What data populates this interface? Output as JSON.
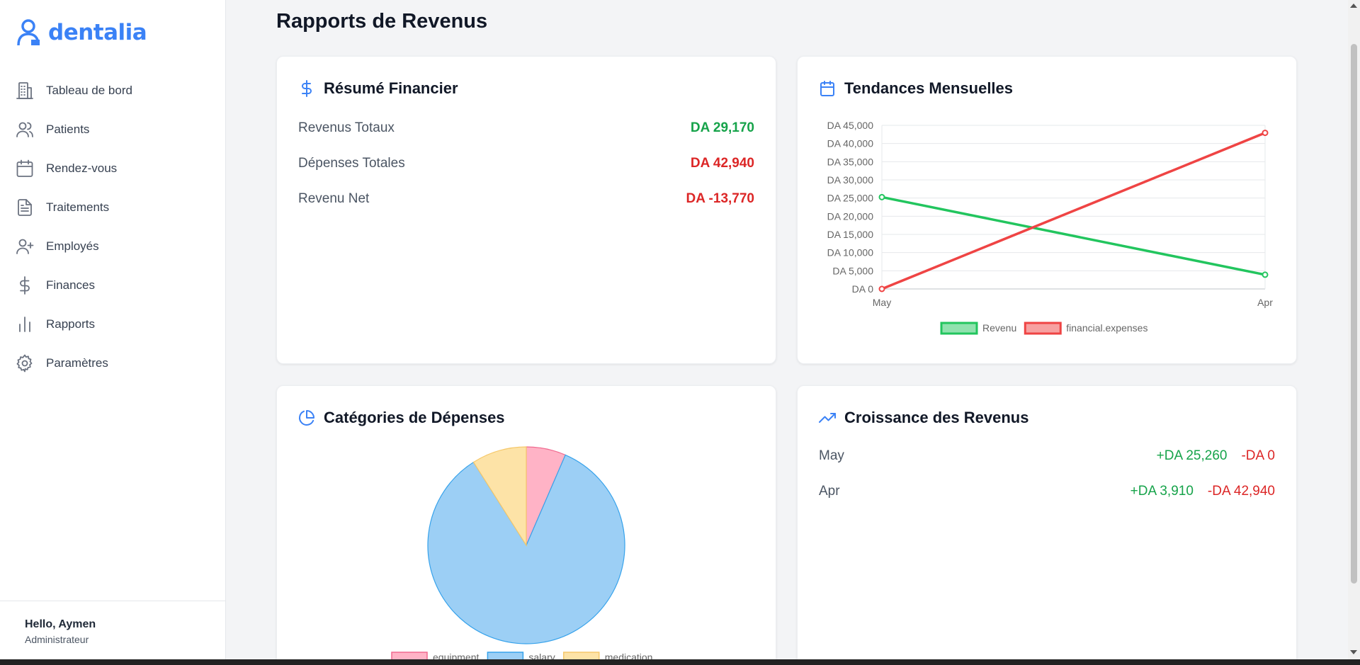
{
  "brand": {
    "name": "dentalia"
  },
  "nav": [
    {
      "label": "Tableau de bord",
      "icon": "dashboard-icon"
    },
    {
      "label": "Patients",
      "icon": "users-icon"
    },
    {
      "label": "Rendez-vous",
      "icon": "calendar-icon"
    },
    {
      "label": "Traitements",
      "icon": "file-icon"
    },
    {
      "label": "Employés",
      "icon": "user-plus-icon"
    },
    {
      "label": "Finances",
      "icon": "dollar-icon"
    },
    {
      "label": "Rapports",
      "icon": "bar-chart-icon"
    },
    {
      "label": "Paramètres",
      "icon": "gear-icon"
    }
  ],
  "user": {
    "greeting": "Hello, Aymen",
    "role": "Administrateur"
  },
  "page": {
    "title": "Rapports de Revenus"
  },
  "summary": {
    "title": "Résumé Financier",
    "rows": [
      {
        "label": "Revenus Totaux",
        "value": "DA 29,170",
        "tone": "green"
      },
      {
        "label": "Dépenses Totales",
        "value": "DA 42,940",
        "tone": "red"
      },
      {
        "label": "Revenu Net",
        "value": "DA -13,770",
        "tone": "red"
      }
    ]
  },
  "trends": {
    "title": "Tendances Mensuelles"
  },
  "categories": {
    "title": "Catégories de Dépenses"
  },
  "growth": {
    "title": "Croissance des Revenus",
    "rows": [
      {
        "month": "May",
        "plus": "+DA 25,260",
        "minus": "-DA 0"
      },
      {
        "month": "Apr",
        "plus": "+DA 3,910",
        "minus": "-DA 42,940"
      }
    ]
  },
  "colors": {
    "accent": "#3b82f6",
    "green": "#22c55e",
    "red": "#ef4444"
  },
  "chart_data": [
    {
      "type": "line",
      "categories": [
        "May",
        "Apr"
      ],
      "series": [
        {
          "name": "Revenu",
          "values": [
            25260,
            3910
          ],
          "color": "#22c55e"
        },
        {
          "name": "financial.expenses",
          "values": [
            0,
            42940
          ],
          "color": "#ef4444"
        }
      ],
      "ylim": [
        0,
        45000
      ],
      "yticks": [
        "DA 0",
        "DA 5,000",
        "DA 10,000",
        "DA 15,000",
        "DA 20,000",
        "DA 25,000",
        "DA 30,000",
        "DA 35,000",
        "DA 40,000",
        "DA 45,000"
      ],
      "grid": true,
      "legend": "bottom"
    },
    {
      "type": "pie",
      "labels": [
        "equipment",
        "salary",
        "medication"
      ],
      "values": [
        6.5,
        84.5,
        9
      ],
      "colors": [
        "#ffb3c6",
        "#9ccff5",
        "#fde3a7"
      ],
      "borders": [
        "#f06a8f",
        "#36a2eb",
        "#f5c86b"
      ],
      "legend": "bottom"
    }
  ]
}
